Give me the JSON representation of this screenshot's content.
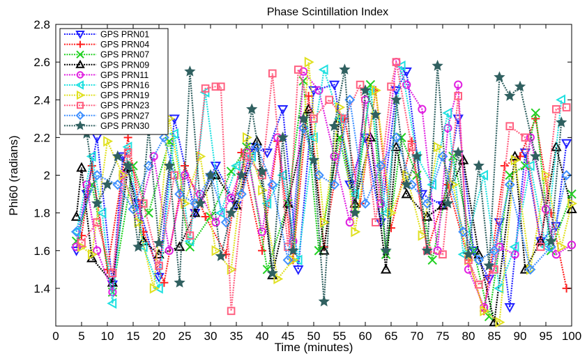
{
  "chart_data": {
    "type": "line",
    "title": "Phase Scintillation Index",
    "xlabel": "Time (minutes)",
    "ylabel": "Phi60 (radians)",
    "xlim": [
      0,
      100
    ],
    "ylim": [
      1.2,
      2.8
    ],
    "xticks": [
      0,
      5,
      10,
      15,
      20,
      25,
      30,
      35,
      40,
      45,
      50,
      55,
      60,
      65,
      70,
      75,
      80,
      85,
      90,
      95,
      100
    ],
    "yticks": [
      1.4,
      1.6,
      1.8,
      2,
      2.2,
      2.4,
      2.6,
      2.8
    ],
    "ytick_labels": [
      "1.4",
      "1.6",
      "1.8",
      "2",
      "2.2",
      "2.4",
      "2.6",
      "2.8"
    ],
    "grid": false,
    "legend_position": "top-left",
    "series": [
      {
        "name": "GPS PRN01",
        "color": "#2020ff",
        "marker": "triangle-down",
        "x": [
          4,
          6,
          8,
          11,
          13,
          16,
          20,
          23,
          27,
          31,
          35,
          38,
          41,
          44,
          47,
          50,
          54,
          57,
          60,
          63,
          66,
          68,
          71,
          75,
          78,
          81,
          84,
          86,
          88,
          91,
          94,
          97,
          99
        ],
        "y": [
          1.6,
          1.9,
          2.2,
          1.42,
          2.1,
          1.85,
          1.46,
          2.3,
          1.8,
          2.05,
          1.84,
          2.15,
          2.12,
          2.35,
          1.5,
          2.45,
          2.48,
          1.95,
          2.2,
          1.75,
          2.45,
          2.55,
          1.9,
          1.84,
          2.3,
          1.6,
          1.45,
          1.75,
          1.3,
          2.12,
          1.65,
          1.73,
          2.17
        ]
      },
      {
        "name": "GPS PRN04",
        "color": "#ff2020",
        "marker": "plus",
        "x": [
          5,
          7,
          10,
          14,
          17,
          21,
          25,
          29,
          33,
          36,
          40,
          43,
          46,
          49,
          52,
          56,
          59,
          62,
          65,
          69,
          72,
          76,
          80,
          83,
          87,
          90,
          93,
          96,
          99
        ],
        "y": [
          1.68,
          2.05,
          1.5,
          2.2,
          1.7,
          1.43,
          2.05,
          1.78,
          1.58,
          2.12,
          1.6,
          2.18,
          1.55,
          2.42,
          1.62,
          2.3,
          1.85,
          2.45,
          1.72,
          2.18,
          1.6,
          1.95,
          1.55,
          1.28,
          2.05,
          2.1,
          2.3,
          1.8,
          1.4
        ]
      },
      {
        "name": "GPS PRN07",
        "color": "#20d020",
        "marker": "x",
        "x": [
          4,
          7,
          11,
          15,
          18,
          22,
          26,
          30,
          34,
          37,
          41,
          45,
          48,
          51,
          55,
          58,
          61,
          64,
          67,
          70,
          73,
          77,
          81,
          84,
          88,
          91,
          93,
          96,
          100
        ],
        "y": [
          1.65,
          1.95,
          1.38,
          2.05,
          1.8,
          2.18,
          1.62,
          1.78,
          2.02,
          2.15,
          1.5,
          1.85,
          2.5,
          1.6,
          2.2,
          1.82,
          2.48,
          1.58,
          2.2,
          2.0,
          1.55,
          2.1,
          1.6,
          1.25,
          2.0,
          2.05,
          2.33,
          1.6,
          1.9
        ]
      },
      {
        "name": "GPS PRN09",
        "color": "#000000",
        "marker": "triangle-up",
        "x": [
          4,
          5,
          7,
          11,
          14,
          17,
          20,
          24,
          27,
          31,
          35,
          39,
          42,
          45,
          49,
          52,
          55,
          58,
          61,
          64,
          66,
          68,
          72,
          75,
          79,
          82,
          85,
          89,
          91,
          94,
          97,
          100
        ],
        "y": [
          1.78,
          2.04,
          1.56,
          1.43,
          2.04,
          1.65,
          1.58,
          1.62,
          1.8,
          2.0,
          1.84,
          2.18,
          1.47,
          1.85,
          2.35,
          1.6,
          2.3,
          1.85,
          2.2,
          1.5,
          2.15,
          1.9,
          1.78,
          1.84,
          2.08,
          1.58,
          1.22,
          2.1,
          1.5,
          1.65,
          2.15,
          1.82
        ]
      },
      {
        "name": "GPS PRN11",
        "color": "#e020e0",
        "marker": "circle",
        "x": [
          4,
          6,
          8,
          11,
          13,
          16,
          19,
          22,
          25,
          28,
          31,
          34,
          37,
          40,
          43,
          46,
          48,
          51,
          54,
          57,
          60,
          63,
          66,
          68,
          71,
          74,
          76,
          78,
          80,
          83,
          86,
          89,
          92,
          95,
          97,
          100
        ],
        "y": [
          1.62,
          1.95,
          1.6,
          1.38,
          2.0,
          1.78,
          2.1,
          1.6,
          2.0,
          1.9,
          1.75,
          1.88,
          2.12,
          1.7,
          2.2,
          1.65,
          2.55,
          2.45,
          2.1,
          1.75,
          2.4,
          1.85,
          2.6,
          2.48,
          2.35,
          1.6,
          2.25,
          2.48,
          1.5,
          1.3,
          1.62,
          1.58,
          2.2,
          1.82,
          1.58,
          1.63
        ]
      },
      {
        "name": "GPS PRN16",
        "color": "#20e0e0",
        "marker": "triangle-left",
        "x": [
          4,
          7,
          9,
          11,
          14,
          17,
          20,
          23,
          26,
          29,
          32,
          35,
          38,
          41,
          44,
          47,
          50,
          52,
          55,
          58,
          61,
          64,
          67,
          70,
          73,
          76,
          79,
          83,
          86,
          89,
          92,
          95,
          98
        ],
        "y": [
          1.7,
          2.1,
          1.8,
          1.32,
          2.15,
          1.62,
          1.4,
          2.22,
          1.65,
          2.44,
          1.8,
          2.05,
          2.1,
          1.85,
          2.0,
          1.55,
          2.2,
          2.56,
          2.3,
          1.9,
          2.45,
          1.8,
          2.58,
          2.1,
          1.95,
          2.33,
          1.58,
          2.0,
          1.4,
          1.62,
          2.05,
          1.62,
          2.4
        ]
      },
      {
        "name": "GPS PRN19",
        "color": "#e0e020",
        "marker": "triangle-right",
        "x": [
          5,
          7,
          10,
          13,
          16,
          19,
          22,
          25,
          28,
          31,
          34,
          37,
          40,
          43,
          46,
          49,
          52,
          55,
          58,
          62,
          65,
          68,
          71,
          74,
          77,
          80,
          83,
          86,
          89,
          92,
          95,
          98,
          100
        ],
        "y": [
          1.62,
          1.58,
          2.18,
          2.0,
          1.75,
          1.4,
          2.3,
          1.85,
          2.1,
          1.6,
          1.5,
          2.2,
          1.92,
          1.45,
          1.55,
          2.6,
          1.75,
          2.36,
          1.7,
          2.45,
          1.8,
          2.0,
          1.68,
          2.15,
          1.95,
          1.55,
          1.28,
          1.22,
          2.08,
          1.5,
          2.0,
          1.62,
          1.85
        ]
      },
      {
        "name": "GPS PRN23",
        "color": "#ff6080",
        "marker": "square",
        "x": [
          5,
          8,
          11,
          14,
          17,
          20,
          23,
          26,
          29,
          31,
          32,
          34,
          37,
          40,
          42,
          45,
          47,
          50,
          53,
          56,
          59,
          62,
          65,
          66,
          69,
          72,
          75,
          78,
          80,
          82,
          85,
          88,
          91,
          94,
          97,
          99
        ],
        "y": [
          1.64,
          1.75,
          1.48,
          2.12,
          1.85,
          1.52,
          2.0,
          1.68,
          2.46,
          2.47,
          2.47,
          1.28,
          2.1,
          2.0,
          2.54,
          1.62,
          2.56,
          2.3,
          2.4,
          2.3,
          2.48,
          1.75,
          2.47,
          2.6,
          2.15,
          1.6,
          1.58,
          2.42,
          1.55,
          1.42,
          1.5,
          2.26,
          2.2,
          1.62,
          2.35,
          2.36
        ]
      },
      {
        "name": "GPS PRN27",
        "color": "#4090ff",
        "marker": "diamond",
        "x": [
          4,
          8,
          12,
          15,
          18,
          21,
          24,
          27,
          30,
          33,
          36,
          39,
          42,
          45,
          48,
          51,
          54,
          57,
          60,
          63,
          66,
          69,
          72,
          75,
          79,
          82,
          85,
          88,
          92,
          96,
          99
        ],
        "y": [
          1.7,
          2.0,
          1.95,
          1.82,
          2.05,
          2.2,
          1.9,
          1.85,
          2.0,
          1.75,
          1.9,
          2.15,
          1.95,
          1.55,
          2.25,
          2.0,
          1.95,
          2.4,
          1.85,
          2.05,
          2.2,
          1.95,
          1.85,
          2.1,
          1.7,
          1.55,
          1.6,
          1.95,
          1.5,
          1.62,
          2.0
        ]
      },
      {
        "name": "GPS PRN30",
        "color": "#306060",
        "marker": "star",
        "x": [
          6,
          8,
          10,
          12,
          14,
          16,
          18,
          20,
          22,
          24,
          26,
          28,
          30,
          32,
          34,
          36,
          38,
          40,
          42,
          44,
          46,
          48,
          50,
          52,
          54,
          56,
          58,
          60,
          62,
          64,
          66,
          68,
          70,
          72,
          74,
          76,
          78,
          80,
          82,
          84,
          86,
          88,
          90,
          93,
          96,
          98
        ],
        "y": [
          2.22,
          1.85,
          1.95,
          2.1,
          2.05,
          1.62,
          2.25,
          1.64,
          2.05,
          1.43,
          2.55,
          1.85,
          2.0,
          1.57,
          1.8,
          2.0,
          2.35,
          2.02,
          1.48,
          2.2,
          1.6,
          2.3,
          2.08,
          1.33,
          2.26,
          2.56,
          1.8,
          2.45,
          2.32,
          1.6,
          2.4,
          1.95,
          2.1,
          1.6,
          2.58,
          1.85,
          2.12,
          1.58,
          2.05,
          1.52,
          2.52,
          2.42,
          2.47,
          2.1,
          1.65,
          2.28
        ]
      }
    ]
  }
}
